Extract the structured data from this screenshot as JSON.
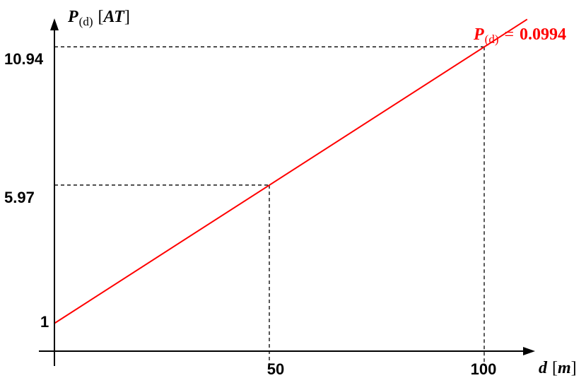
{
  "chart_data": {
    "type": "line",
    "x_axis": {
      "label_var": "d",
      "label_unit": "m",
      "ticks": [
        50,
        100
      ]
    },
    "y_axis": {
      "label_var": "P",
      "label_sub": "(d)",
      "label_unit": "AT",
      "ticks": [
        1,
        5.97,
        10.94
      ]
    },
    "series": [
      {
        "x": [
          0,
          50,
          100,
          110
        ],
        "y": [
          1,
          5.97,
          10.94,
          11.93
        ],
        "color": "#ff0000"
      }
    ],
    "guides": [
      {
        "x": 50,
        "y": 5.97
      },
      {
        "x": 100,
        "y": 10.94
      }
    ],
    "equation": {
      "lhs_var": "P",
      "lhs_sub": "(d)",
      "eq": "=",
      "rhs_visible": "0.0994"
    },
    "xlim": [
      0,
      110
    ],
    "ylim": [
      0,
      12.2
    ]
  }
}
